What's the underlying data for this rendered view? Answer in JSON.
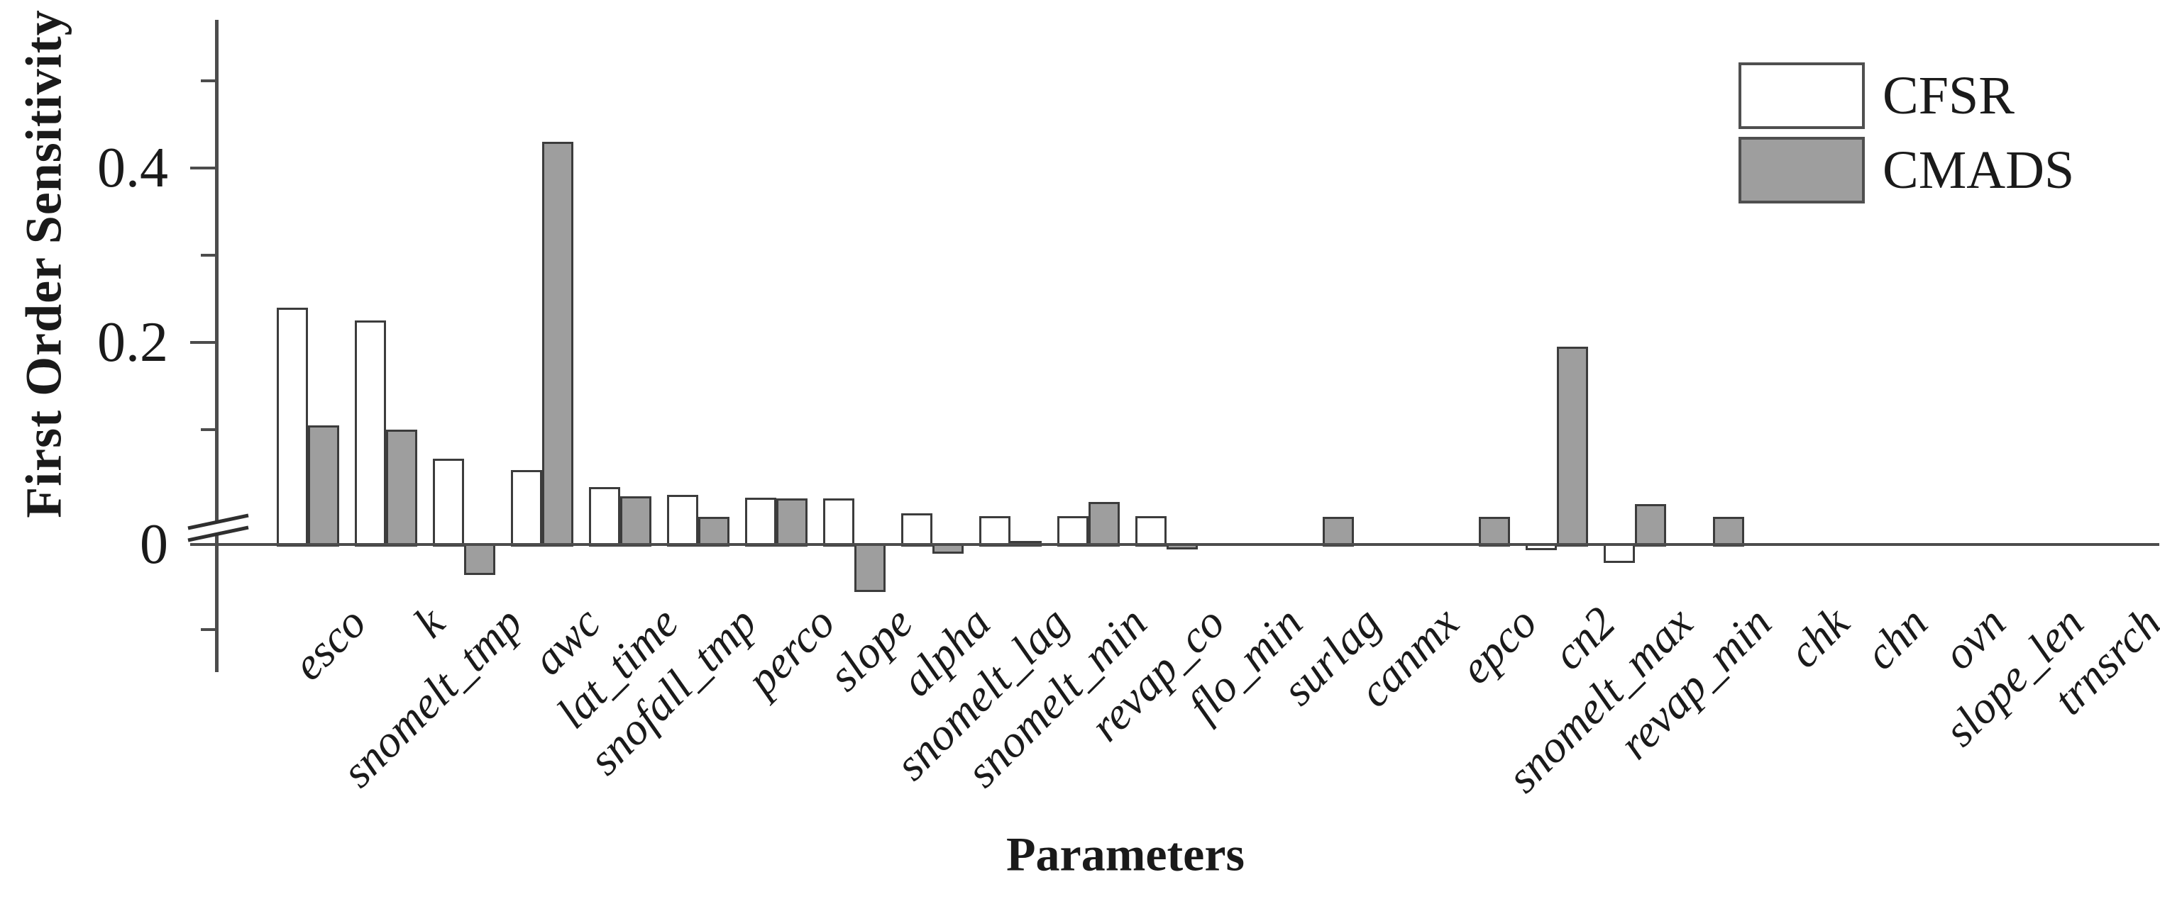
{
  "figure": {
    "y_title": "First Order Sensitivity",
    "x_title": "Parameters"
  },
  "legend": {
    "items": [
      {
        "label": "CFSR",
        "color": "#ffffff"
      },
      {
        "label": "CMADS",
        "color": "#9e9e9e"
      }
    ]
  },
  "chart_data": {
    "type": "bar",
    "title": "",
    "xlabel": "Parameters",
    "ylabel": "First Order Sensitivity",
    "categories": [
      "esco",
      "k",
      "snomelt_tmp",
      "awc",
      "lat_time",
      "snofall_tmp",
      "perco",
      "slope",
      "alpha",
      "snomelt_lag",
      "snomelt_min",
      "revap_co",
      "flo_min",
      "surlag",
      "canmx",
      "epco",
      "cn2",
      "snomelt_max",
      "revap_min",
      "chk",
      "chn",
      "ovn",
      "slope_len",
      "trnsrch"
    ],
    "series": [
      {
        "name": "CFSR",
        "color": "#ffffff",
        "values": [
          0.24,
          0.225,
          0.075,
          0.065,
          0.05,
          0.043,
          0.041,
          0.04,
          0.027,
          0.025,
          0.025,
          0.025,
          0,
          0,
          0,
          0,
          -0.004,
          -0.015,
          0,
          0,
          0,
          0,
          0,
          0
        ]
      },
      {
        "name": "CMADS",
        "color": "#9e9e9e",
        "values": [
          0.105,
          0.1,
          -0.025,
          0.43,
          0.042,
          0.024,
          0.04,
          -0.04,
          -0.007,
          0.003,
          0.037,
          -0.003,
          0,
          0.024,
          0,
          0.024,
          0.195,
          0.035,
          0.024,
          0,
          0,
          0,
          0,
          0
        ]
      }
    ],
    "bar_edge_color": "#3c3c3c",
    "y_axis": {
      "broken_axis": true,
      "break_location": "just above 0",
      "ylim": [
        -0.08,
        0.52
      ],
      "major_ticks": [
        {
          "value": 0.4,
          "label": "0.4"
        },
        {
          "value": 0.2,
          "label": "0.2"
        },
        {
          "value": 0.0,
          "label": "0"
        }
      ],
      "minor_ticks": [
        0.5,
        0.3,
        0.1,
        -0.074
      ],
      "grid": false
    },
    "legend_position": "upper right"
  }
}
